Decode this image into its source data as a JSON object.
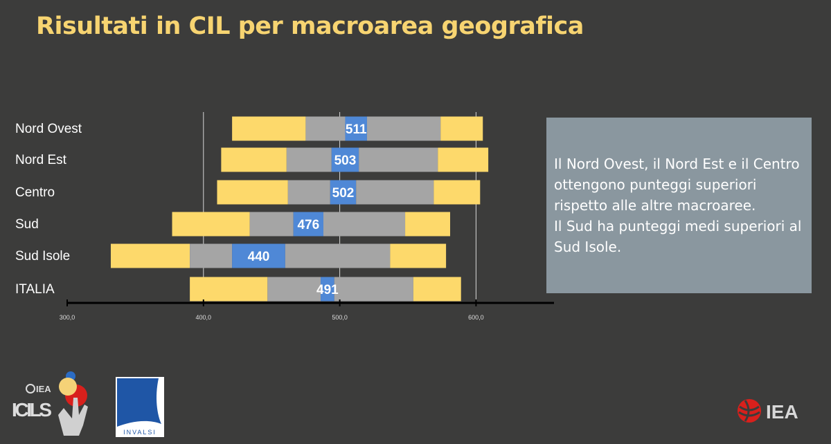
{
  "title": "Risultati in CIL  per macroarea geografica",
  "note": {
    "lines": [
      "Il Nord Ovest, il Nord Est e il Centro ottengono  punteggi superiori rispetto alle altre macroaree.",
      "Il Sud ha punteggi medi superiori al Sud Isole."
    ]
  },
  "logos": {
    "icils": "ICILS",
    "iea_small": "IEA",
    "invalsi": "INVALSI",
    "iea": "IEA"
  },
  "colors": {
    "background": "#3c3c3b",
    "outer": "#fdd96b",
    "inner": "#a5a5a5",
    "mean_ci": "#4f88d6",
    "title": "#f7d471"
  },
  "chart_data": {
    "type": "bar",
    "subtype": "percentile-range",
    "categories": [
      "Nord Ovest",
      "Nord Est",
      "Centro",
      "Sud",
      "Sud Isole",
      "ITALIA"
    ],
    "mean": [
      511,
      503,
      502,
      476,
      440,
      491
    ],
    "mean_labels": [
      "511",
      "503",
      "502",
      "476",
      "440",
      "491"
    ],
    "p5": [
      421,
      413,
      410,
      377,
      332,
      390
    ],
    "p25": [
      475,
      461,
      462,
      434,
      390,
      447
    ],
    "ci_low": [
      504,
      494,
      493,
      466,
      421,
      486
    ],
    "ci_high": [
      520,
      514,
      512,
      488,
      460,
      496
    ],
    "p75": [
      574,
      572,
      569,
      548,
      537,
      554
    ],
    "p95": [
      605,
      609,
      603,
      581,
      578,
      589
    ],
    "xlim": [
      300,
      650
    ],
    "xticks": [
      "300,0",
      "400,0",
      "500,0",
      "600,0"
    ],
    "grid": true
  }
}
